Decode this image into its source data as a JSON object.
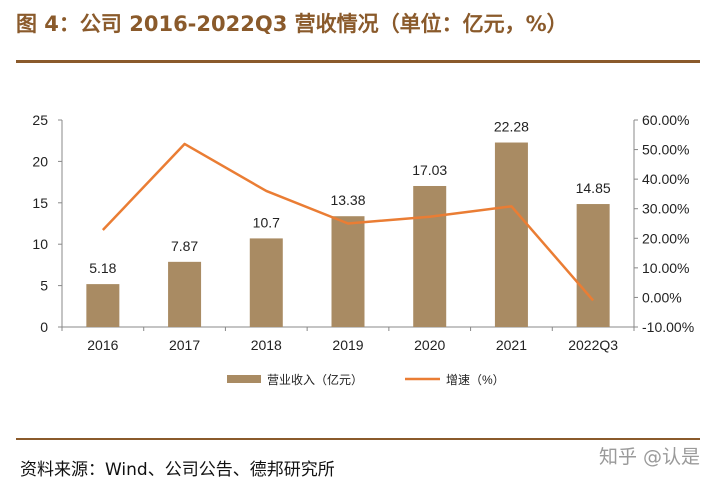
{
  "header": {
    "title": "图 4：公司 2016-2022Q3 营收情况（单位：亿元，%）"
  },
  "footer": {
    "source": "资料来源：Wind、公司公告、德邦研究所",
    "watermark": "知乎 @认是"
  },
  "colors": {
    "accent": "#8a5a2b",
    "bar": "#a98b63",
    "line": "#ea7d34"
  },
  "chart_data": {
    "type": "bar",
    "categories": [
      "2016",
      "2017",
      "2018",
      "2019",
      "2020",
      "2021",
      "2022Q3"
    ],
    "series": [
      {
        "name": "营业收入（亿元）",
        "type": "bar",
        "axis": "left",
        "values": [
          5.18,
          7.87,
          10.7,
          13.38,
          17.03,
          22.28,
          14.85
        ],
        "labels": [
          "5.18",
          "7.87",
          "10.7",
          "13.38",
          "17.03",
          "22.28",
          "14.85"
        ]
      },
      {
        "name": "增速（%）",
        "type": "line",
        "axis": "right",
        "values": [
          22.8,
          51.9,
          36.0,
          25.0,
          27.3,
          30.8,
          -1.0
        ]
      }
    ],
    "y_left": {
      "lim": [
        0,
        25
      ],
      "ticks": [
        "0",
        "5",
        "10",
        "15",
        "20",
        "25"
      ]
    },
    "y_right": {
      "lim": [
        -10,
        60
      ],
      "ticks": [
        "-10.00%",
        "0.00%",
        "10.00%",
        "20.00%",
        "30.00%",
        "40.00%",
        "50.00%",
        "60.00%"
      ]
    },
    "legend": {
      "position": "bottom"
    },
    "grid": false
  }
}
